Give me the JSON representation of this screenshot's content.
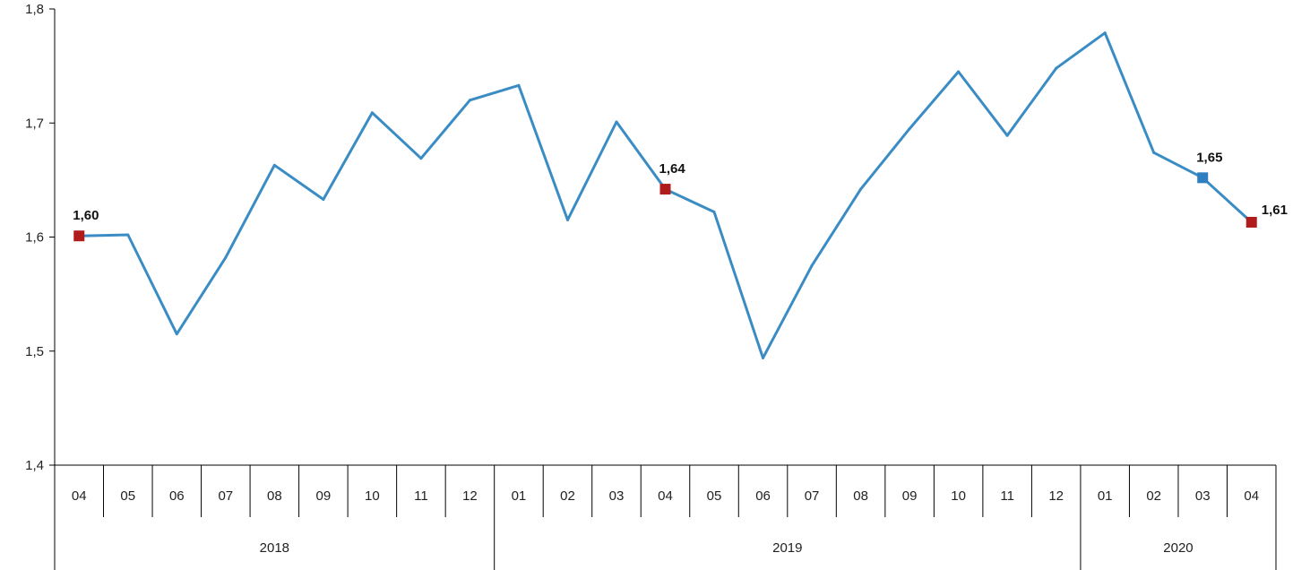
{
  "chart_data": {
    "type": "line",
    "title": "",
    "xlabel": "",
    "ylabel": "",
    "ylim": [
      1.4,
      1.8
    ],
    "yticks": [
      "1,4",
      "1,5",
      "1,6",
      "1,7",
      "1,8"
    ],
    "grid": false,
    "months": [
      "04",
      "05",
      "06",
      "07",
      "08",
      "09",
      "10",
      "11",
      "12",
      "01",
      "02",
      "03",
      "04",
      "05",
      "06",
      "07",
      "08",
      "09",
      "10",
      "11",
      "12",
      "01",
      "02",
      "03",
      "04"
    ],
    "years": [
      {
        "label": "2018",
        "count": 9
      },
      {
        "label": "2019",
        "count": 12
      },
      {
        "label": "2020",
        "count": 4
      }
    ],
    "series": [
      {
        "color": "#3a8cc4",
        "values": [
          1.601,
          1.602,
          1.515,
          1.582,
          1.663,
          1.633,
          1.709,
          1.669,
          1.72,
          1.733,
          1.615,
          1.701,
          1.642,
          1.622,
          1.494,
          1.575,
          1.642,
          1.695,
          1.745,
          1.689,
          1.748,
          1.779,
          1.674,
          1.652,
          1.613
        ]
      }
    ],
    "annotations": [
      {
        "index": 0,
        "label": "1,60",
        "color": "#b01c1c"
      },
      {
        "index": 12,
        "label": "1,64",
        "color": "#b01c1c"
      },
      {
        "index": 23,
        "label": "1,65",
        "color": "#2f7fc0"
      },
      {
        "index": 24,
        "label": "1,61",
        "color": "#b01c1c"
      }
    ]
  }
}
